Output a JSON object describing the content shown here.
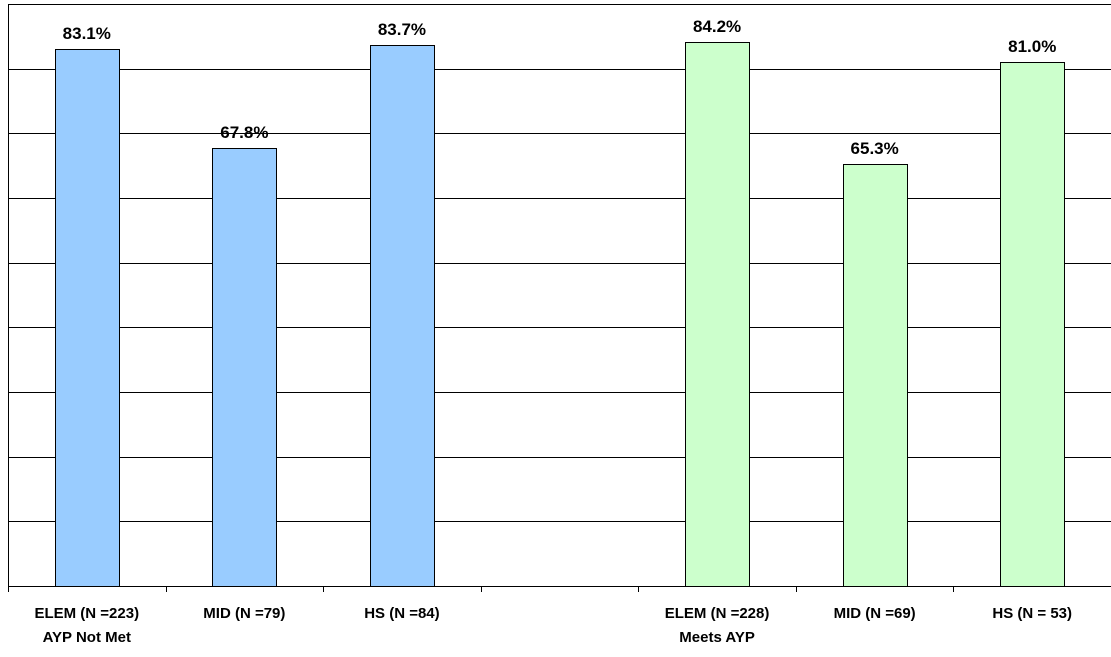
{
  "chart_data": {
    "type": "bar",
    "title": "",
    "xlabel": "",
    "ylabel": "",
    "ylim": [
      0,
      90
    ],
    "grid": true,
    "legend": "none",
    "categories": [
      "ELEM (N =223)",
      "MID (N =79)",
      "HS (N =84)",
      "",
      "ELEM (N =228)",
      "MID (N =69)",
      "HS (N = 53)"
    ],
    "group_labels": [
      "AYP Not Met",
      "",
      "",
      "",
      "Meets AYP",
      "",
      ""
    ],
    "values": [
      83.1,
      67.8,
      83.7,
      null,
      84.2,
      65.3,
      81.0
    ],
    "value_labels": [
      "83.1%",
      "67.8%",
      "83.7%",
      "",
      "84.2%",
      "65.3%",
      "81.0%"
    ],
    "bar_colors": [
      "#99ccff",
      "#99ccff",
      "#99ccff",
      null,
      "#ccffcc",
      "#ccffcc",
      "#ccffcc"
    ],
    "gridline_color": "#000000",
    "bar_outline_color": "#000000"
  }
}
